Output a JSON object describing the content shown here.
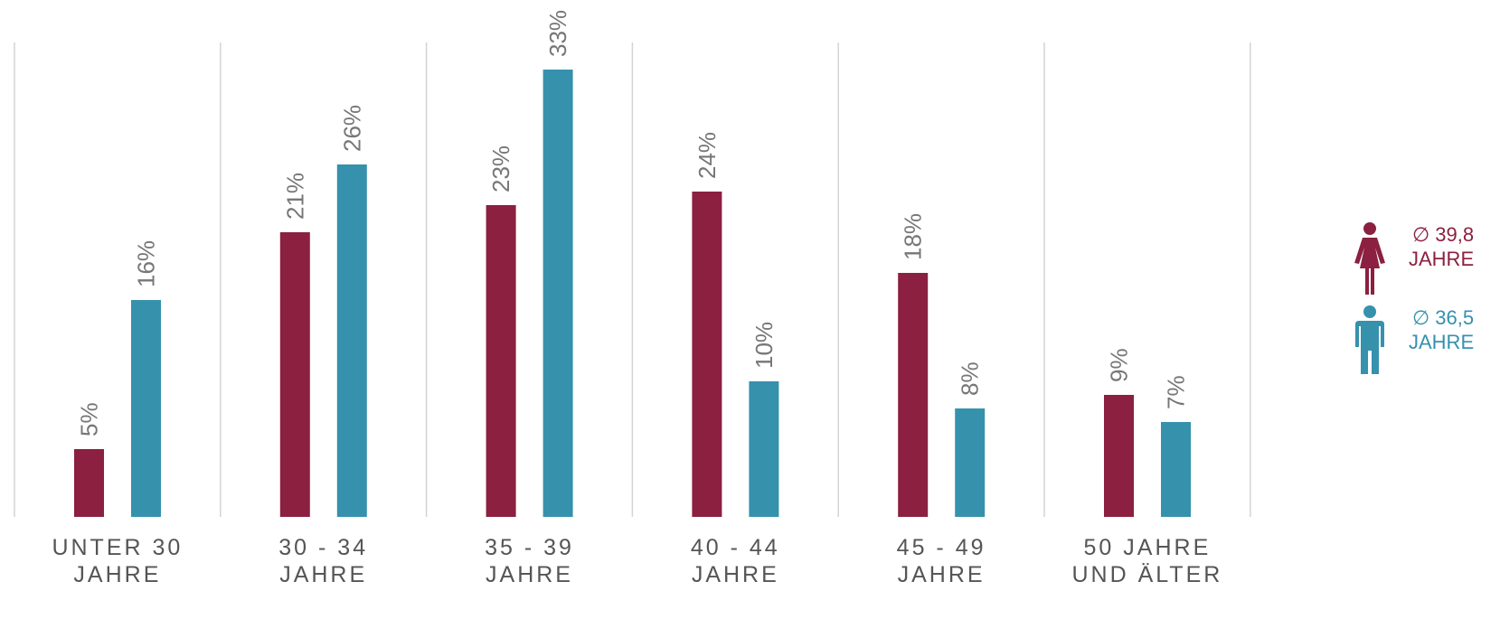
{
  "chart_data": {
    "type": "bar",
    "categories": [
      [
        "UNTER 30",
        "JAHRE"
      ],
      [
        "30 - 34",
        "JAHRE"
      ],
      [
        "35 - 39",
        "JAHRE"
      ],
      [
        "40 - 44",
        "JAHRE"
      ],
      [
        "45 - 49",
        "JAHRE"
      ],
      [
        "50 JAHRE",
        "UND ÄLTER"
      ]
    ],
    "series": [
      {
        "values": [
          5,
          21,
          23,
          24,
          18,
          9
        ],
        "labels": [
          "5%",
          "21%",
          "23%",
          "24%",
          "18%",
          "9%"
        ],
        "color": "#8b2040"
      },
      {
        "values": [
          16,
          26,
          33,
          10,
          8,
          7
        ],
        "labels": [
          "16%",
          "26%",
          "33%",
          "10%",
          "8%",
          "7%"
        ],
        "color": "#3691ad"
      }
    ],
    "ylim": [
      0,
      35
    ],
    "grid": "vertical separators",
    "legend_position": "right",
    "axis_label_color": "#555555",
    "data_label_color": "#777777",
    "separator_color": "#d4d4d4"
  },
  "legend": {
    "female": {
      "icon": "female-icon",
      "avg": "∅ 39,8",
      "unit": "JAHRE",
      "color": "#8b2040"
    },
    "male": {
      "icon": "male-icon",
      "avg": "∅ 36,5",
      "unit": "JAHRE",
      "color": "#3691ad"
    }
  }
}
